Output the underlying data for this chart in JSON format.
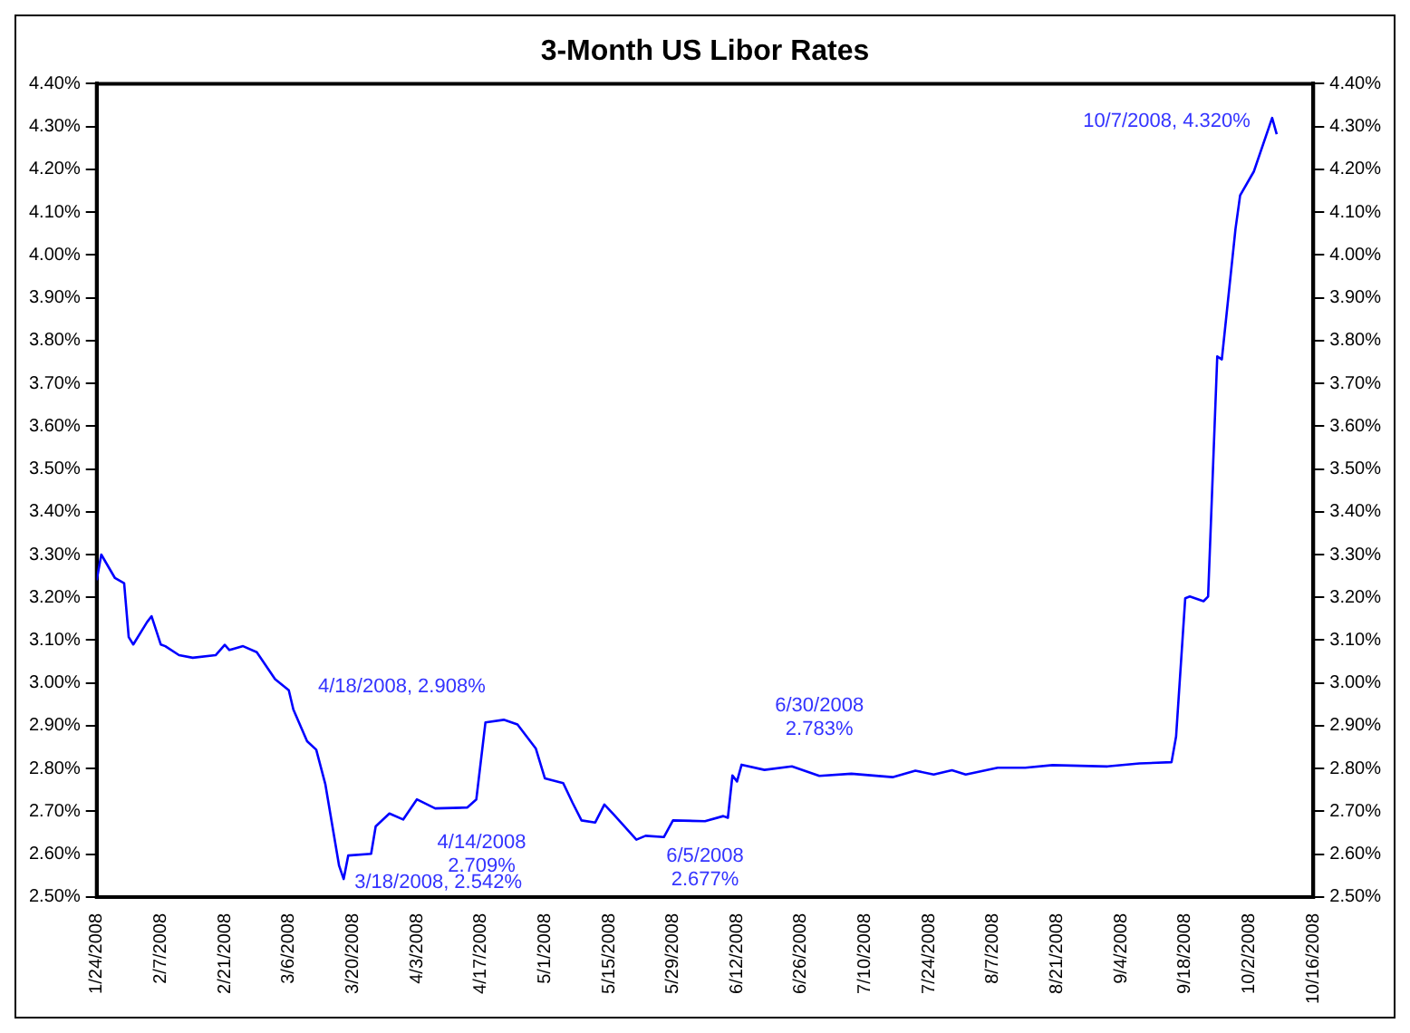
{
  "chart_data": {
    "type": "line",
    "title": "3-Month US Libor Rates",
    "xlim": [
      "2008-01-24",
      "2008-10-16"
    ],
    "xticks": [
      {
        "value": "2008-01-24",
        "label": "1/24/2008"
      },
      {
        "value": "2008-02-07",
        "label": "2/7/2008"
      },
      {
        "value": "2008-02-21",
        "label": "2/21/2008"
      },
      {
        "value": "2008-03-06",
        "label": "3/6/2008"
      },
      {
        "value": "2008-03-20",
        "label": "3/20/2008"
      },
      {
        "value": "2008-04-03",
        "label": "4/3/2008"
      },
      {
        "value": "2008-04-17",
        "label": "4/17/2008"
      },
      {
        "value": "2008-05-01",
        "label": "5/1/2008"
      },
      {
        "value": "2008-05-15",
        "label": "5/15/2008"
      },
      {
        "value": "2008-05-29",
        "label": "5/29/2008"
      },
      {
        "value": "2008-06-12",
        "label": "6/12/2008"
      },
      {
        "value": "2008-06-26",
        "label": "6/26/2008"
      },
      {
        "value": "2008-07-10",
        "label": "7/10/2008"
      },
      {
        "value": "2008-07-24",
        "label": "7/24/2008"
      },
      {
        "value": "2008-08-07",
        "label": "8/7/2008"
      },
      {
        "value": "2008-08-21",
        "label": "8/21/2008"
      },
      {
        "value": "2008-09-04",
        "label": "9/4/2008"
      },
      {
        "value": "2008-09-18",
        "label": "9/18/2008"
      },
      {
        "value": "2008-10-02",
        "label": "10/2/2008"
      },
      {
        "value": "2008-10-16",
        "label": "10/16/2008"
      }
    ],
    "ylim": [
      2.5,
      4.4
    ],
    "yticks": [
      {
        "value": 2.5,
        "label": "2.50%"
      },
      {
        "value": 2.6,
        "label": "2.60%"
      },
      {
        "value": 2.7,
        "label": "2.70%"
      },
      {
        "value": 2.8,
        "label": "2.80%"
      },
      {
        "value": 2.9,
        "label": "2.90%"
      },
      {
        "value": 3.0,
        "label": "3.00%"
      },
      {
        "value": 3.1,
        "label": "3.10%"
      },
      {
        "value": 3.2,
        "label": "3.20%"
      },
      {
        "value": 3.3,
        "label": "3.30%"
      },
      {
        "value": 3.4,
        "label": "3.40%"
      },
      {
        "value": 3.5,
        "label": "3.50%"
      },
      {
        "value": 3.6,
        "label": "3.60%"
      },
      {
        "value": 3.7,
        "label": "3.70%"
      },
      {
        "value": 3.8,
        "label": "3.80%"
      },
      {
        "value": 3.9,
        "label": "3.90%"
      },
      {
        "value": 4.0,
        "label": "4.00%"
      },
      {
        "value": 4.1,
        "label": "4.10%"
      },
      {
        "value": 4.2,
        "label": "4.20%"
      },
      {
        "value": 4.3,
        "label": "4.30%"
      },
      {
        "value": 4.4,
        "label": "4.40%"
      }
    ],
    "y2lim": [
      2.5,
      4.4
    ],
    "y2ticks": [
      {
        "value": 2.5,
        "label": "2.50%"
      },
      {
        "value": 2.6,
        "label": "2.60%"
      },
      {
        "value": 2.7,
        "label": "2.70%"
      },
      {
        "value": 2.8,
        "label": "2.80%"
      },
      {
        "value": 2.9,
        "label": "2.90%"
      },
      {
        "value": 3.0,
        "label": "3.00%"
      },
      {
        "value": 3.1,
        "label": "3.10%"
      },
      {
        "value": 3.2,
        "label": "3.20%"
      },
      {
        "value": 3.3,
        "label": "3.30%"
      },
      {
        "value": 3.4,
        "label": "3.40%"
      },
      {
        "value": 3.5,
        "label": "3.50%"
      },
      {
        "value": 3.6,
        "label": "3.60%"
      },
      {
        "value": 3.7,
        "label": "3.70%"
      },
      {
        "value": 3.8,
        "label": "3.80%"
      },
      {
        "value": 3.9,
        "label": "3.90%"
      },
      {
        "value": 4.0,
        "label": "4.00%"
      },
      {
        "value": 4.1,
        "label": "4.10%"
      },
      {
        "value": 4.2,
        "label": "4.20%"
      },
      {
        "value": 4.3,
        "label": "4.30%"
      },
      {
        "value": 4.4,
        "label": "4.40%"
      }
    ],
    "grid": false,
    "legend": false,
    "marker": "none",
    "line_style": "solid",
    "series": [
      {
        "color": "#0000ff",
        "x": [
          "2008-01-24",
          "2008-01-25",
          "2008-01-28",
          "2008-01-30",
          "2008-01-31",
          "2008-02-01",
          "2008-02-04",
          "2008-02-05",
          "2008-02-07",
          "2008-02-08",
          "2008-02-11",
          "2008-02-14",
          "2008-02-19",
          "2008-02-21",
          "2008-02-22",
          "2008-02-25",
          "2008-02-28",
          "2008-03-03",
          "2008-03-06",
          "2008-03-07",
          "2008-03-10",
          "2008-03-12",
          "2008-03-14",
          "2008-03-17",
          "2008-03-18",
          "2008-03-19",
          "2008-03-24",
          "2008-03-25",
          "2008-03-28",
          "2008-03-31",
          "2008-04-03",
          "2008-04-07",
          "2008-04-14",
          "2008-04-16",
          "2008-04-18",
          "2008-04-22",
          "2008-04-25",
          "2008-04-29",
          "2008-05-01",
          "2008-05-05",
          "2008-05-07",
          "2008-05-09",
          "2008-05-12",
          "2008-05-14",
          "2008-05-16",
          "2008-05-21",
          "2008-05-23",
          "2008-05-27",
          "2008-05-29",
          "2008-06-05",
          "2008-06-09",
          "2008-06-10",
          "2008-06-11",
          "2008-06-12",
          "2008-06-13",
          "2008-06-18",
          "2008-06-24",
          "2008-06-30",
          "2008-07-07",
          "2008-07-16",
          "2008-07-21",
          "2008-07-25",
          "2008-07-29",
          "2008-08-01",
          "2008-08-08",
          "2008-08-14",
          "2008-08-20",
          "2008-09-01",
          "2008-09-08",
          "2008-09-15",
          "2008-09-16",
          "2008-09-18",
          "2008-09-19",
          "2008-09-22",
          "2008-09-23",
          "2008-09-25",
          "2008-09-26",
          "2008-09-29",
          "2008-09-30",
          "2008-10-03",
          "2008-10-07",
          "2008-10-08"
        ],
        "values": [
          3.24,
          3.3,
          3.245,
          3.233,
          3.107,
          3.09,
          3.142,
          3.156,
          3.09,
          3.086,
          3.065,
          3.059,
          3.065,
          3.089,
          3.077,
          3.086,
          3.072,
          3.009,
          2.983,
          2.938,
          2.864,
          2.844,
          2.763,
          2.573,
          2.542,
          2.597,
          2.601,
          2.665,
          2.695,
          2.681,
          2.728,
          2.707,
          2.709,
          2.728,
          2.908,
          2.914,
          2.903,
          2.847,
          2.777,
          2.766,
          2.721,
          2.679,
          2.674,
          2.716,
          2.693,
          2.634,
          2.643,
          2.64,
          2.679,
          2.677,
          2.689,
          2.685,
          2.784,
          2.77,
          2.809,
          2.797,
          2.805,
          2.783,
          2.788,
          2.78,
          2.795,
          2.786,
          2.796,
          2.786,
          2.802,
          2.802,
          2.808,
          2.805,
          2.812,
          2.815,
          2.875,
          3.198,
          3.202,
          3.191,
          3.202,
          3.763,
          3.756,
          4.062,
          4.139,
          4.195,
          4.32,
          4.282
        ]
      }
    ],
    "annotations": [
      {
        "text": "4/18/2008, 2.908%",
        "x": "2008-04-18",
        "y": 2.908
      },
      {
        "text": "3/18/2008, 2.542%",
        "x": "2008-03-18",
        "y": 2.542
      },
      {
        "text": "4/14/2008\n2.709%",
        "x": "2008-04-14",
        "y": 2.709
      },
      {
        "text": "6/5/2008\n2.677%",
        "x": "2008-06-05",
        "y": 2.677
      },
      {
        "text": "6/30/2008\n2.783%",
        "x": "2008-06-30",
        "y": 2.783
      },
      {
        "text": "10/7/2008, 4.320%",
        "x": "2008-10-07",
        "y": 4.32
      }
    ]
  }
}
